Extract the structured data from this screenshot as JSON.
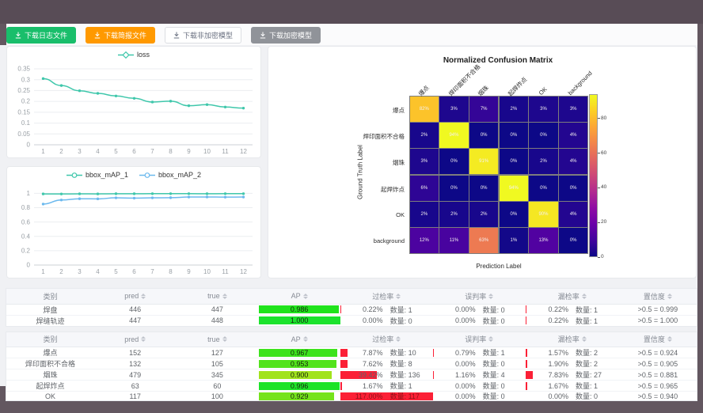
{
  "toolbar": {
    "buttons": [
      {
        "label": "下载日志文件",
        "icon": "download",
        "style": "success"
      },
      {
        "label": "下载简报文件",
        "icon": "download",
        "style": "warning"
      },
      {
        "label": "下载非加密模型",
        "icon": "download",
        "style": "plain"
      },
      {
        "label": "下载加密模型",
        "icon": "download",
        "style": "info"
      }
    ]
  },
  "chart_data": [
    {
      "type": "line",
      "title": "",
      "legend_position": "top",
      "x": [
        1,
        2,
        3,
        4,
        5,
        6,
        7,
        8,
        9,
        10,
        11,
        12
      ],
      "ylim": [
        0,
        0.35
      ],
      "yticks": [
        0,
        0.05,
        0.1,
        0.15,
        0.2,
        0.25,
        0.3,
        0.35
      ],
      "grid": true,
      "series": [
        {
          "name": "loss",
          "color": "#3fc7ab",
          "symbol": "diamond",
          "values": [
            0.305,
            0.273,
            0.249,
            0.237,
            0.225,
            0.214,
            0.197,
            0.201,
            0.18,
            0.185,
            0.174,
            0.169
          ]
        }
      ]
    },
    {
      "type": "line",
      "title": "",
      "legend_position": "top",
      "x": [
        1,
        2,
        3,
        4,
        5,
        6,
        7,
        8,
        9,
        10,
        11,
        12
      ],
      "ylim": [
        0,
        1.06
      ],
      "yticks": [
        0,
        0.2,
        0.4,
        0.6,
        0.8,
        1
      ],
      "grid": true,
      "series": [
        {
          "name": "bbox_mAP_1",
          "color": "#3fc7ab",
          "symbol": "circle",
          "values": [
            0.993,
            0.992,
            0.994,
            0.993,
            0.995,
            0.995,
            0.996,
            0.996,
            0.996,
            0.995,
            0.996,
            0.996
          ]
        },
        {
          "name": "bbox_mAP_2",
          "color": "#6cb9ee",
          "symbol": "circle",
          "values": [
            0.851,
            0.908,
            0.925,
            0.924,
            0.938,
            0.934,
            0.938,
            0.94,
            0.949,
            0.95,
            0.948,
            0.949
          ]
        }
      ]
    },
    {
      "type": "heatmap",
      "title": "Normalized Confusion Matrix",
      "xlabel": "Prediction Label",
      "ylabel": "Ground Truth Label",
      "labels": [
        "爆点",
        "焊印面积不合格",
        "烟珠",
        "起焊炸点",
        "OK",
        "background"
      ],
      "matrix_percent": [
        [
          82,
          3,
          7,
          2,
          3,
          3
        ],
        [
          2,
          94,
          0,
          0,
          0,
          4
        ],
        [
          3,
          0,
          91,
          0,
          2,
          4
        ],
        [
          6,
          0,
          0,
          94,
          0,
          0
        ],
        [
          2,
          2,
          2,
          0,
          90,
          4
        ],
        [
          12,
          11,
          63,
          1,
          13,
          0
        ]
      ],
      "vmax": 94,
      "colorbar_ticks": [
        0,
        20,
        40,
        60,
        80
      ],
      "colormap": "plasma"
    }
  ],
  "tables": [
    {
      "headers": [
        "类别",
        "pred",
        "true",
        "AP",
        "过检率",
        "误判率",
        "漏检率",
        "置信度"
      ],
      "sortable": [
        false,
        true,
        true,
        true,
        true,
        true,
        true,
        true
      ],
      "count_label": "数量",
      "rows": [
        {
          "label": "焊盘",
          "pred": "446",
          "true": "447",
          "ap": "0.986",
          "over_pct": "0.22%",
          "over_cnt": "1",
          "mis_pct": "0.00%",
          "mis_cnt": "0",
          "miss_pct": "0.22%",
          "miss_cnt": "1",
          "conf": ">0.5 = 0.999"
        },
        {
          "label": "焊缝轨迹",
          "pred": "447",
          "true": "448",
          "ap": "1.000",
          "over_pct": "0.00%",
          "over_cnt": "0",
          "mis_pct": "0.00%",
          "mis_cnt": "0",
          "miss_pct": "0.22%",
          "miss_cnt": "1",
          "conf": ">0.5 = 1.000"
        }
      ]
    },
    {
      "headers": [
        "类别",
        "pred",
        "true",
        "AP",
        "过检率",
        "误判率",
        "漏检率",
        "置信度"
      ],
      "sortable": [
        false,
        true,
        true,
        true,
        true,
        true,
        true,
        true
      ],
      "count_label": "数量",
      "rows": [
        {
          "label": "爆点",
          "pred": "152",
          "true": "127",
          "ap": "0.967",
          "over_pct": "7.87%",
          "over_cnt": "10",
          "mis_pct": "0.79%",
          "mis_cnt": "1",
          "miss_pct": "1.57%",
          "miss_cnt": "2",
          "conf": ">0.5 = 0.924"
        },
        {
          "label": "焊印面积不合格",
          "pred": "132",
          "true": "105",
          "ap": "0.953",
          "over_pct": "7.62%",
          "over_cnt": "8",
          "mis_pct": "0.00%",
          "mis_cnt": "0",
          "miss_pct": "1.90%",
          "miss_cnt": "2",
          "conf": ">0.5 = 0.905"
        },
        {
          "label": "烟珠",
          "pred": "479",
          "true": "345",
          "ap": "0.900",
          "over_pct": "39.42%",
          "over_cnt": "136",
          "mis_pct": "1.16%",
          "mis_cnt": "4",
          "miss_pct": "7.83%",
          "miss_cnt": "27",
          "conf": ">0.5 = 0.881"
        },
        {
          "label": "起焊炸点",
          "pred": "63",
          "true": "60",
          "ap": "0.996",
          "over_pct": "1.67%",
          "over_cnt": "1",
          "mis_pct": "0.00%",
          "mis_cnt": "0",
          "miss_pct": "1.67%",
          "miss_cnt": "1",
          "conf": ">0.5 = 0.965"
        },
        {
          "label": "OK",
          "pred": "117",
          "true": "100",
          "ap": "0.929",
          "over_pct": "117.00%",
          "over_cnt": "117",
          "mis_pct": "0.00%",
          "mis_cnt": "0",
          "miss_pct": "0.00%",
          "miss_cnt": "0",
          "conf": ">0.5 = 0.940"
        }
      ]
    }
  ]
}
